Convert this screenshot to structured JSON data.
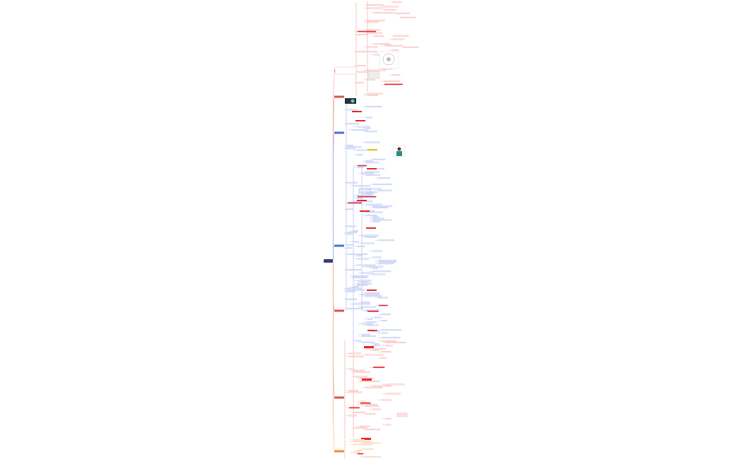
{
  "mindmap": {
    "root": {
      "label": ""
    },
    "colors": {
      "root": "#3f3a7a",
      "branch_red": "#d9534f",
      "branch_orange": "#ef8a3c",
      "branch_blue": "#4a6fd8",
      "leaf_red_fill": "#fde3e1",
      "leaf_blue_fill": "#e3e8fb",
      "leaf_orange_fill": "#fdebd7",
      "highlight_red": "#e8262b",
      "highlight_yellow": "#f5c400",
      "line_red": "#f0a09a",
      "line_blue": "#9fb2ef",
      "line_orange": "#f4b680"
    },
    "branches": [
      {
        "color": "red",
        "label": ""
      },
      {
        "color": "red",
        "label": ""
      },
      {
        "color": "blue",
        "label": ""
      },
      {
        "color": "blue",
        "label": ""
      },
      {
        "color": "red",
        "label": ""
      },
      {
        "color": "red",
        "label": ""
      },
      {
        "color": "orange",
        "label": ""
      }
    ],
    "images": [
      {
        "name": "dark-thumbnail-image"
      },
      {
        "name": "person-photo-image"
      },
      {
        "name": "circular-diagram-image"
      }
    ]
  }
}
